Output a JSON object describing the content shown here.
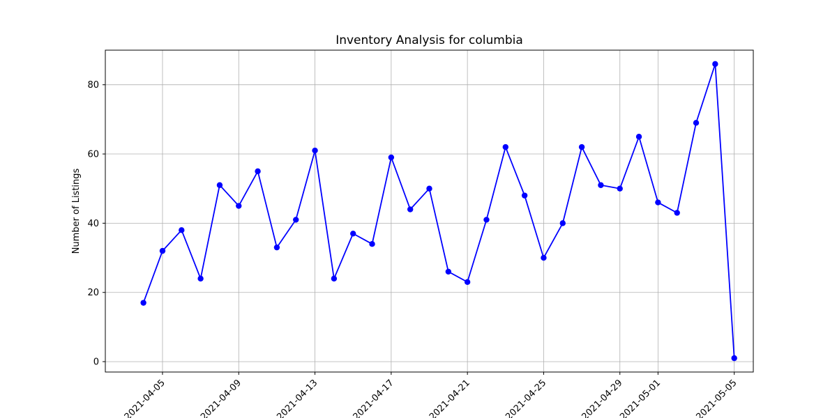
{
  "chart_data": {
    "type": "line",
    "title": "Inventory Analysis for columbia",
    "xlabel": "",
    "ylabel": "Number of Listings",
    "grid": true,
    "line_color": "#0000ff",
    "marker_color": "#0000ff",
    "x": [
      "2021-04-04",
      "2021-04-05",
      "2021-04-06",
      "2021-04-07",
      "2021-04-08",
      "2021-04-09",
      "2021-04-10",
      "2021-04-11",
      "2021-04-12",
      "2021-04-13",
      "2021-04-14",
      "2021-04-15",
      "2021-04-16",
      "2021-04-17",
      "2021-04-18",
      "2021-04-19",
      "2021-04-20",
      "2021-04-21",
      "2021-04-22",
      "2021-04-23",
      "2021-04-24",
      "2021-04-25",
      "2021-04-26",
      "2021-04-27",
      "2021-04-28",
      "2021-04-29",
      "2021-04-30",
      "2021-05-01",
      "2021-05-02",
      "2021-05-03",
      "2021-05-04",
      "2021-05-05"
    ],
    "values": [
      17,
      32,
      38,
      24,
      51,
      45,
      55,
      33,
      41,
      61,
      24,
      37,
      34,
      59,
      44,
      50,
      26,
      23,
      41,
      62,
      48,
      30,
      40,
      62,
      51,
      50,
      65,
      46,
      43,
      69,
      86,
      1
    ],
    "xlim": [
      "2021-04-02",
      "2021-05-06"
    ],
    "ylim": [
      -3,
      90
    ],
    "x_ticks": [
      "2021-04-05",
      "2021-04-09",
      "2021-04-13",
      "2021-04-17",
      "2021-04-21",
      "2021-04-25",
      "2021-04-29",
      "2021-05-01",
      "2021-05-05"
    ],
    "y_ticks": [
      0,
      20,
      40,
      60,
      80
    ]
  }
}
